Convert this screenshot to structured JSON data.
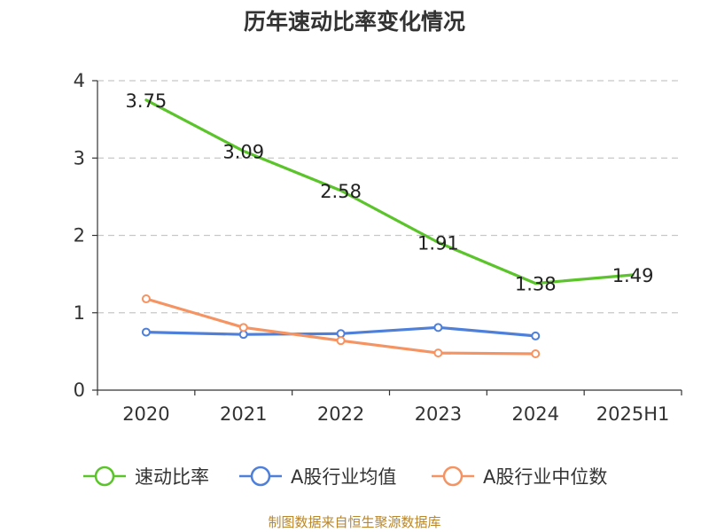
{
  "chart_data": {
    "type": "line",
    "title": "历年速动比率变化情况",
    "categories": [
      "2020",
      "2021",
      "2022",
      "2023",
      "2024",
      "2025H1"
    ],
    "ylim": [
      0,
      4
    ],
    "yticks": [
      0,
      1,
      2,
      3,
      4
    ],
    "grid": true,
    "series": [
      {
        "name": "速动比率",
        "color": "#5bc42b",
        "values": [
          3.75,
          3.09,
          2.58,
          1.91,
          1.38,
          1.49
        ],
        "labels": [
          "3.75",
          "3.09",
          "2.58",
          "1.91",
          "1.38",
          "1.49"
        ],
        "show_markers": false
      },
      {
        "name": "A股行业均值",
        "color": "#4e7fd9",
        "values": [
          0.75,
          0.72,
          0.73,
          0.81,
          0.7,
          null
        ],
        "show_markers": true
      },
      {
        "name": "A股行业中位数",
        "color": "#f59462",
        "values": [
          1.18,
          0.81,
          0.64,
          0.48,
          0.47,
          null
        ],
        "show_markers": true
      }
    ],
    "legend_position": "bottom",
    "source": "制图数据来自恒生聚源数据库"
  }
}
